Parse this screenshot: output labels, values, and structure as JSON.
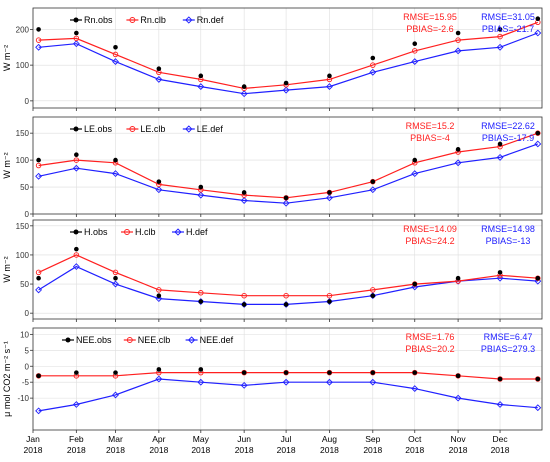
{
  "chart_data": {
    "type": "line",
    "x_axis": {
      "months": [
        "Jan",
        "Feb",
        "Mar",
        "Apr",
        "May",
        "Jun",
        "Jul",
        "Aug",
        "Sep",
        "Oct",
        "Nov",
        "Dec"
      ],
      "year": "2018",
      "range": [
        "2018-01-01",
        "2018-12-31"
      ]
    },
    "panels": [
      {
        "id": "rn",
        "ylabel": "W m⁻²",
        "ylim": [
          -20,
          260
        ],
        "yticks": [
          0,
          100,
          200
        ],
        "grid": true,
        "legend": [
          "Rn.obs",
          "Rn.clb",
          "Rn.def"
        ],
        "stats_clb": {
          "rmse": "RMSE=15.95",
          "pbias": "PBIAS=-2.6"
        },
        "stats_def": {
          "rmse": "RMSE=31.05",
          "pbias": "PBIAS=-21.7"
        },
        "series": {
          "obs": {
            "x": [
              "2018-01-05",
              "2018-02-01",
              "2018-03-01",
              "2018-04-01",
              "2018-05-01",
              "2018-06-01",
              "2018-07-01",
              "2018-08-01",
              "2018-09-01",
              "2018-10-01",
              "2018-11-01",
              "2018-12-01",
              "2018-12-28"
            ],
            "y": [
              200,
              190,
              150,
              90,
              70,
              40,
              50,
              70,
              120,
              160,
              190,
              200,
              230
            ]
          },
          "clb": {
            "x": [
              "2018-01-05",
              "2018-02-01",
              "2018-03-01",
              "2018-04-01",
              "2018-05-01",
              "2018-06-01",
              "2018-07-01",
              "2018-08-01",
              "2018-09-01",
              "2018-10-01",
              "2018-11-01",
              "2018-12-01",
              "2018-12-28"
            ],
            "y": [
              170,
              175,
              130,
              80,
              60,
              35,
              45,
              60,
              100,
              140,
              170,
              180,
              220
            ]
          },
          "def": {
            "x": [
              "2018-01-05",
              "2018-02-01",
              "2018-03-01",
              "2018-04-01",
              "2018-05-01",
              "2018-06-01",
              "2018-07-01",
              "2018-08-01",
              "2018-09-01",
              "2018-10-01",
              "2018-11-01",
              "2018-12-01",
              "2018-12-28"
            ],
            "y": [
              150,
              160,
              110,
              60,
              40,
              20,
              30,
              40,
              80,
              110,
              140,
              150,
              190
            ]
          }
        }
      },
      {
        "id": "le",
        "ylabel": "W m⁻²",
        "ylim": [
          0,
          180
        ],
        "yticks": [
          0,
          50,
          100,
          150
        ],
        "grid": true,
        "legend": [
          "LE.obs",
          "LE.clb",
          "LE.def"
        ],
        "stats_clb": {
          "rmse": "RMSE=15.2",
          "pbias": "PBIAS=-4"
        },
        "stats_def": {
          "rmse": "RMSE=22.62",
          "pbias": "PBIAS=-17.9"
        },
        "series": {
          "obs": {
            "x": [
              "2018-01-05",
              "2018-02-01",
              "2018-03-01",
              "2018-04-01",
              "2018-05-01",
              "2018-06-01",
              "2018-07-01",
              "2018-08-01",
              "2018-09-01",
              "2018-10-01",
              "2018-11-01",
              "2018-12-01",
              "2018-12-28"
            ],
            "y": [
              100,
              110,
              100,
              60,
              50,
              40,
              30,
              40,
              60,
              100,
              120,
              130,
              150
            ]
          },
          "clb": {
            "x": [
              "2018-01-05",
              "2018-02-01",
              "2018-03-01",
              "2018-04-01",
              "2018-05-01",
              "2018-06-01",
              "2018-07-01",
              "2018-08-01",
              "2018-09-01",
              "2018-10-01",
              "2018-11-01",
              "2018-12-01",
              "2018-12-28"
            ],
            "y": [
              90,
              100,
              95,
              55,
              45,
              35,
              30,
              40,
              60,
              95,
              115,
              125,
              150
            ]
          },
          "def": {
            "x": [
              "2018-01-05",
              "2018-02-01",
              "2018-03-01",
              "2018-04-01",
              "2018-05-01",
              "2018-06-01",
              "2018-07-01",
              "2018-08-01",
              "2018-09-01",
              "2018-10-01",
              "2018-11-01",
              "2018-12-01",
              "2018-12-28"
            ],
            "y": [
              70,
              85,
              75,
              45,
              35,
              25,
              20,
              30,
              45,
              75,
              95,
              105,
              130
            ]
          }
        }
      },
      {
        "id": "h",
        "ylabel": "W m⁻²",
        "ylim": [
          -10,
          160
        ],
        "yticks": [
          0,
          50,
          100,
          150
        ],
        "grid": true,
        "legend": [
          "H.obs",
          "H.clb",
          "H.def"
        ],
        "stats_clb": {
          "rmse": "RMSE=14.09",
          "pbias": "PBIAS=24.2"
        },
        "stats_def": {
          "rmse": "RMSE=14.98",
          "pbias": "PBIAS=-13"
        },
        "series": {
          "obs": {
            "x": [
              "2018-01-05",
              "2018-02-01",
              "2018-03-01",
              "2018-04-01",
              "2018-05-01",
              "2018-06-01",
              "2018-07-01",
              "2018-08-01",
              "2018-09-01",
              "2018-10-01",
              "2018-11-01",
              "2018-12-01",
              "2018-12-28"
            ],
            "y": [
              60,
              110,
              60,
              30,
              20,
              15,
              15,
              20,
              30,
              50,
              60,
              70,
              60
            ]
          },
          "clb": {
            "x": [
              "2018-01-05",
              "2018-02-01",
              "2018-03-01",
              "2018-04-01",
              "2018-05-01",
              "2018-06-01",
              "2018-07-01",
              "2018-08-01",
              "2018-09-01",
              "2018-10-01",
              "2018-11-01",
              "2018-12-01",
              "2018-12-28"
            ],
            "y": [
              70,
              100,
              70,
              40,
              35,
              30,
              30,
              30,
              40,
              50,
              55,
              65,
              60
            ]
          },
          "def": {
            "x": [
              "2018-01-05",
              "2018-02-01",
              "2018-03-01",
              "2018-04-01",
              "2018-05-01",
              "2018-06-01",
              "2018-07-01",
              "2018-08-01",
              "2018-09-01",
              "2018-10-01",
              "2018-11-01",
              "2018-12-01",
              "2018-12-28"
            ],
            "y": [
              40,
              80,
              50,
              25,
              20,
              15,
              15,
              20,
              30,
              45,
              55,
              60,
              55
            ]
          }
        }
      },
      {
        "id": "nee",
        "ylabel": "μ mol CO2 m⁻² s⁻¹",
        "ylim": [
          -20,
          12
        ],
        "yticks": [
          -10,
          -5,
          0,
          5,
          10
        ],
        "grid": true,
        "legend": [
          "NEE.obs",
          "NEE.clb",
          "NEE.def"
        ],
        "stats_clb": {
          "rmse": "RMSE=1.76",
          "pbias": "PBIAS=20.2"
        },
        "stats_def": {
          "rmse": "RMSE=6.47",
          "pbias": "PBIAS=279.3"
        },
        "series": {
          "obs": {
            "x": [
              "2018-01-05",
              "2018-02-01",
              "2018-03-01",
              "2018-04-01",
              "2018-05-01",
              "2018-06-01",
              "2018-07-01",
              "2018-08-01",
              "2018-09-01",
              "2018-10-01",
              "2018-11-01",
              "2018-12-01",
              "2018-12-28"
            ],
            "y": [
              -3,
              -2,
              -2,
              -1,
              -1,
              -2,
              -2,
              -2,
              -2,
              -2,
              -3,
              -4,
              -4
            ]
          },
          "clb": {
            "x": [
              "2018-01-05",
              "2018-02-01",
              "2018-03-01",
              "2018-04-01",
              "2018-05-01",
              "2018-06-01",
              "2018-07-01",
              "2018-08-01",
              "2018-09-01",
              "2018-10-01",
              "2018-11-01",
              "2018-12-01",
              "2018-12-28"
            ],
            "y": [
              -3,
              -3,
              -3,
              -2,
              -2,
              -2,
              -2,
              -2,
              -2,
              -2,
              -3,
              -4,
              -4
            ]
          },
          "def": {
            "x": [
              "2018-01-05",
              "2018-02-01",
              "2018-03-01",
              "2018-04-01",
              "2018-05-01",
              "2018-06-01",
              "2018-07-01",
              "2018-08-01",
              "2018-09-01",
              "2018-10-01",
              "2018-11-01",
              "2018-12-01",
              "2018-12-28"
            ],
            "y": [
              -14,
              -12,
              -9,
              -4,
              -5,
              -6,
              -5,
              -5,
              -5,
              -7,
              -10,
              -12,
              -13
            ]
          }
        }
      }
    ]
  },
  "colors": {
    "obs": "#000000",
    "clb": "#ff2020",
    "def": "#2020ff",
    "grid": "#dedede"
  }
}
